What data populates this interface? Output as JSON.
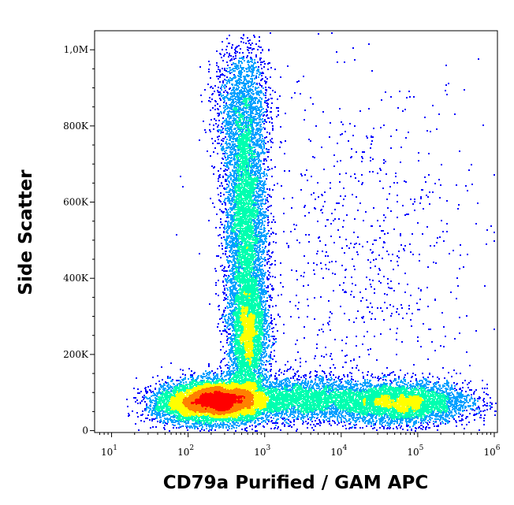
{
  "chart_data": {
    "type": "scatter",
    "subtype": "flow-cytometry density dot plot",
    "xlabel": "CD79a Purified / GAM APC",
    "ylabel": "Side Scatter",
    "x_scale": "log",
    "y_scale": "linear",
    "xlim": [
      6,
      1100000
    ],
    "ylim": [
      -5000,
      1050000
    ],
    "x_ticks": [
      {
        "base": "10",
        "exp": "1",
        "value": 10
      },
      {
        "base": "10",
        "exp": "2",
        "value": 100
      },
      {
        "base": "10",
        "exp": "3",
        "value": 1000
      },
      {
        "base": "10",
        "exp": "4",
        "value": 10000
      },
      {
        "base": "10",
        "exp": "5",
        "value": 100000
      },
      {
        "base": "10",
        "exp": "6",
        "value": 1000000
      }
    ],
    "y_ticks": [
      {
        "label": "0",
        "value": 0
      },
      {
        "label": "200K",
        "value": 200000
      },
      {
        "label": "400K",
        "value": 400000
      },
      {
        "label": "600K",
        "value": 600000
      },
      {
        "label": "800K",
        "value": 800000
      },
      {
        "label": "1,0M",
        "value": 1000000
      }
    ],
    "populations": [
      {
        "x": 250,
        "y": 80000,
        "x_spread_decades": 0.32,
        "y_spread": 28000,
        "weight": 0.3
      },
      {
        "x": 600,
        "y": 250000,
        "x_spread_decades": 0.13,
        "y_spread": 90000,
        "weight": 0.14
      },
      {
        "x": 550,
        "y": 560000,
        "x_spread_decades": 0.14,
        "y_spread": 150000,
        "weight": 0.16
      },
      {
        "x": 500,
        "y": 850000,
        "x_spread_decades": 0.18,
        "y_spread": 90000,
        "weight": 0.06
      },
      {
        "x": 60000,
        "y": 75000,
        "x_spread_decades": 0.45,
        "y_spread": 28000,
        "weight": 0.16
      },
      {
        "x": 3000,
        "y": 85000,
        "x_spread_decades": 0.45,
        "y_spread": 30000,
        "weight": 0.1
      },
      {
        "x": 80,
        "y": 70000,
        "x_spread_decades": 0.25,
        "y_spread": 25000,
        "weight": 0.05
      },
      {
        "x": 20000,
        "y": 450000,
        "x_spread_decades": 0.8,
        "y_spread": 250000,
        "weight": 0.03
      }
    ],
    "density_colormap": [
      "#0000ff",
      "#00a0ff",
      "#00ffb0",
      "#ffff00",
      "#ff8000",
      "#ff0000"
    ],
    "grid": false,
    "legend": "none"
  }
}
